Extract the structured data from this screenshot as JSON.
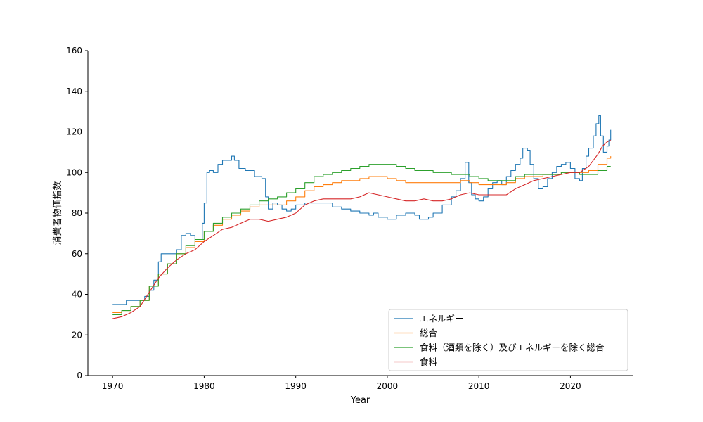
{
  "chart_data": {
    "type": "line",
    "title": "",
    "xlabel": "Year",
    "ylabel": "消費者物価指数",
    "xlim": [
      1967.3,
      2026.8
    ],
    "ylim": [
      0,
      160
    ],
    "xticks": [
      1970,
      1980,
      1990,
      2000,
      2010,
      2020
    ],
    "yticks": [
      0,
      20,
      40,
      60,
      80,
      100,
      120,
      140,
      160
    ],
    "grid": false,
    "legend_position": "lower-right",
    "series": [
      {
        "name": "エネルギー",
        "color": "#1f77b4",
        "step": true,
        "points": [
          [
            1970.0,
            35
          ],
          [
            1971.0,
            35
          ],
          [
            1971.5,
            37
          ],
          [
            1973.0,
            37
          ],
          [
            1973.5,
            39
          ],
          [
            1974.0,
            42
          ],
          [
            1974.5,
            47
          ],
          [
            1975.0,
            56
          ],
          [
            1975.3,
            60
          ],
          [
            1976.0,
            60
          ],
          [
            1977.0,
            62
          ],
          [
            1977.5,
            69
          ],
          [
            1978.0,
            70
          ],
          [
            1978.5,
            69
          ],
          [
            1979.0,
            67
          ],
          [
            1979.5,
            67
          ],
          [
            1979.8,
            75
          ],
          [
            1980.0,
            85
          ],
          [
            1980.3,
            100
          ],
          [
            1980.6,
            101
          ],
          [
            1981.0,
            100
          ],
          [
            1981.5,
            104
          ],
          [
            1982.0,
            106
          ],
          [
            1982.5,
            106
          ],
          [
            1983.0,
            108
          ],
          [
            1983.3,
            106
          ],
          [
            1983.8,
            102
          ],
          [
            1984.5,
            101
          ],
          [
            1985.0,
            101
          ],
          [
            1985.5,
            98
          ],
          [
            1986.3,
            97
          ],
          [
            1986.7,
            88
          ],
          [
            1987.0,
            82
          ],
          [
            1987.5,
            85
          ],
          [
            1988.0,
            84
          ],
          [
            1988.5,
            82
          ],
          [
            1989.0,
            81
          ],
          [
            1989.5,
            82
          ],
          [
            1990.0,
            84
          ],
          [
            1990.5,
            84
          ],
          [
            1991.0,
            85
          ],
          [
            1992.0,
            85
          ],
          [
            1993.0,
            85
          ],
          [
            1994.0,
            83
          ],
          [
            1995.0,
            82
          ],
          [
            1996.0,
            81
          ],
          [
            1997.0,
            80
          ],
          [
            1998.0,
            79
          ],
          [
            1998.5,
            80
          ],
          [
            1999.0,
            78
          ],
          [
            2000.0,
            77
          ],
          [
            2001.0,
            79
          ],
          [
            2002.0,
            80
          ],
          [
            2003.0,
            79
          ],
          [
            2003.5,
            77
          ],
          [
            2004.5,
            78
          ],
          [
            2005.0,
            80
          ],
          [
            2006.0,
            84
          ],
          [
            2007.0,
            88
          ],
          [
            2007.5,
            91
          ],
          [
            2008.0,
            97
          ],
          [
            2008.5,
            105
          ],
          [
            2008.9,
            95
          ],
          [
            2009.2,
            89
          ],
          [
            2009.6,
            87
          ],
          [
            2010.0,
            86
          ],
          [
            2010.5,
            88
          ],
          [
            2011.0,
            92
          ],
          [
            2011.5,
            95
          ],
          [
            2012.0,
            96
          ],
          [
            2012.5,
            94
          ],
          [
            2013.0,
            98
          ],
          [
            2013.5,
            101
          ],
          [
            2014.0,
            104
          ],
          [
            2014.5,
            107
          ],
          [
            2014.8,
            112
          ],
          [
            2015.3,
            111
          ],
          [
            2015.6,
            104
          ],
          [
            2016.0,
            97
          ],
          [
            2016.5,
            92
          ],
          [
            2017.0,
            93
          ],
          [
            2017.5,
            97
          ],
          [
            2018.0,
            100
          ],
          [
            2018.5,
            103
          ],
          [
            2019.0,
            104
          ],
          [
            2019.5,
            105
          ],
          [
            2020.0,
            102
          ],
          [
            2020.5,
            97
          ],
          [
            2021.0,
            96
          ],
          [
            2021.3,
            102
          ],
          [
            2021.7,
            108
          ],
          [
            2022.0,
            112
          ],
          [
            2022.5,
            118
          ],
          [
            2022.8,
            124
          ],
          [
            2023.1,
            128
          ],
          [
            2023.3,
            118
          ],
          [
            2023.6,
            110
          ],
          [
            2024.0,
            113
          ],
          [
            2024.2,
            116
          ],
          [
            2024.4,
            121
          ]
        ]
      },
      {
        "name": "総合",
        "color": "#ff7f0e",
        "step": true,
        "points": [
          [
            1970.0,
            31
          ],
          [
            1971.0,
            32
          ],
          [
            1972.0,
            34
          ],
          [
            1973.0,
            37
          ],
          [
            1974.0,
            44
          ],
          [
            1975.0,
            50
          ],
          [
            1976.0,
            55
          ],
          [
            1977.0,
            60
          ],
          [
            1978.0,
            63
          ],
          [
            1979.0,
            66
          ],
          [
            1980.0,
            71
          ],
          [
            1981.0,
            74
          ],
          [
            1982.0,
            77
          ],
          [
            1983.0,
            79
          ],
          [
            1984.0,
            81
          ],
          [
            1985.0,
            83
          ],
          [
            1986.0,
            84
          ],
          [
            1987.0,
            84
          ],
          [
            1988.0,
            84
          ],
          [
            1989.0,
            86
          ],
          [
            1990.0,
            88
          ],
          [
            1991.0,
            91
          ],
          [
            1992.0,
            93
          ],
          [
            1993.0,
            94
          ],
          [
            1994.0,
            95
          ],
          [
            1995.0,
            96
          ],
          [
            1996.0,
            96
          ],
          [
            1997.0,
            97
          ],
          [
            1998.0,
            98
          ],
          [
            1999.0,
            98
          ],
          [
            2000.0,
            97
          ],
          [
            2001.0,
            96
          ],
          [
            2002.0,
            95
          ],
          [
            2003.0,
            95
          ],
          [
            2004.0,
            95
          ],
          [
            2005.0,
            95
          ],
          [
            2006.0,
            95
          ],
          [
            2007.0,
            95
          ],
          [
            2008.0,
            96
          ],
          [
            2009.0,
            95
          ],
          [
            2010.0,
            94
          ],
          [
            2011.0,
            94
          ],
          [
            2012.0,
            94
          ],
          [
            2013.0,
            95
          ],
          [
            2014.0,
            97
          ],
          [
            2015.0,
            98
          ],
          [
            2016.0,
            98
          ],
          [
            2017.0,
            99
          ],
          [
            2018.0,
            99
          ],
          [
            2019.0,
            100
          ],
          [
            2020.0,
            100
          ],
          [
            2021.0,
            100
          ],
          [
            2022.0,
            101
          ],
          [
            2023.0,
            104
          ],
          [
            2024.0,
            107
          ],
          [
            2024.4,
            108
          ]
        ]
      },
      {
        "name": "食料（酒類を除く）及びエネルギーを除く総合",
        "color": "#2ca02c",
        "step": true,
        "points": [
          [
            1970.0,
            30
          ],
          [
            1971.0,
            32
          ],
          [
            1972.0,
            34
          ],
          [
            1973.0,
            37
          ],
          [
            1974.0,
            44
          ],
          [
            1975.0,
            50
          ],
          [
            1976.0,
            55
          ],
          [
            1977.0,
            60
          ],
          [
            1978.0,
            64
          ],
          [
            1979.0,
            67
          ],
          [
            1980.0,
            71
          ],
          [
            1981.0,
            75
          ],
          [
            1982.0,
            78
          ],
          [
            1983.0,
            80
          ],
          [
            1984.0,
            82
          ],
          [
            1985.0,
            84
          ],
          [
            1986.0,
            86
          ],
          [
            1987.0,
            87
          ],
          [
            1988.0,
            88
          ],
          [
            1989.0,
            90
          ],
          [
            1990.0,
            92
          ],
          [
            1991.0,
            95
          ],
          [
            1992.0,
            98
          ],
          [
            1993.0,
            99
          ],
          [
            1994.0,
            100
          ],
          [
            1995.0,
            101
          ],
          [
            1996.0,
            102
          ],
          [
            1997.0,
            103
          ],
          [
            1998.0,
            104
          ],
          [
            1999.0,
            104
          ],
          [
            2000.0,
            104
          ],
          [
            2001.0,
            103
          ],
          [
            2002.0,
            102
          ],
          [
            2003.0,
            101
          ],
          [
            2004.0,
            101
          ],
          [
            2005.0,
            100
          ],
          [
            2006.0,
            100
          ],
          [
            2007.0,
            99
          ],
          [
            2008.0,
            99
          ],
          [
            2009.0,
            98
          ],
          [
            2010.0,
            97
          ],
          [
            2011.0,
            96
          ],
          [
            2012.0,
            96
          ],
          [
            2013.0,
            96
          ],
          [
            2014.0,
            98
          ],
          [
            2015.0,
            99
          ],
          [
            2016.0,
            99
          ],
          [
            2017.0,
            99
          ],
          [
            2018.0,
            99
          ],
          [
            2019.0,
            100
          ],
          [
            2020.0,
            100
          ],
          [
            2021.0,
            99
          ],
          [
            2022.0,
            99
          ],
          [
            2023.0,
            101
          ],
          [
            2024.0,
            103
          ],
          [
            2024.4,
            103
          ]
        ]
      },
      {
        "name": "食料",
        "color": "#d62728",
        "step": false,
        "points": [
          [
            1970.0,
            28
          ],
          [
            1971.0,
            29
          ],
          [
            1972.0,
            31
          ],
          [
            1973.0,
            34
          ],
          [
            1974.0,
            41
          ],
          [
            1975.0,
            48
          ],
          [
            1976.0,
            53
          ],
          [
            1977.0,
            57
          ],
          [
            1978.0,
            60
          ],
          [
            1979.0,
            62
          ],
          [
            1980.0,
            66
          ],
          [
            1981.0,
            69
          ],
          [
            1982.0,
            72
          ],
          [
            1983.0,
            73
          ],
          [
            1984.0,
            75
          ],
          [
            1985.0,
            77
          ],
          [
            1986.0,
            77
          ],
          [
            1987.0,
            76
          ],
          [
            1988.0,
            77
          ],
          [
            1989.0,
            78
          ],
          [
            1990.0,
            80
          ],
          [
            1991.0,
            84
          ],
          [
            1992.0,
            86
          ],
          [
            1993.0,
            87
          ],
          [
            1994.0,
            87
          ],
          [
            1995.0,
            87
          ],
          [
            1996.0,
            87
          ],
          [
            1997.0,
            88
          ],
          [
            1998.0,
            90
          ],
          [
            1999.0,
            89
          ],
          [
            2000.0,
            88
          ],
          [
            2001.0,
            87
          ],
          [
            2002.0,
            86
          ],
          [
            2003.0,
            86
          ],
          [
            2004.0,
            87
          ],
          [
            2005.0,
            86
          ],
          [
            2006.0,
            86
          ],
          [
            2007.0,
            87
          ],
          [
            2008.0,
            89
          ],
          [
            2009.0,
            90
          ],
          [
            2010.0,
            89
          ],
          [
            2011.0,
            89
          ],
          [
            2012.0,
            89
          ],
          [
            2013.0,
            89
          ],
          [
            2014.0,
            92
          ],
          [
            2015.0,
            94
          ],
          [
            2016.0,
            96
          ],
          [
            2017.0,
            97
          ],
          [
            2018.0,
            98
          ],
          [
            2019.0,
            99
          ],
          [
            2020.0,
            100
          ],
          [
            2021.0,
            100
          ],
          [
            2022.0,
            103
          ],
          [
            2023.0,
            109
          ],
          [
            2023.5,
            113
          ],
          [
            2024.0,
            115
          ],
          [
            2024.4,
            116
          ]
        ]
      }
    ]
  }
}
